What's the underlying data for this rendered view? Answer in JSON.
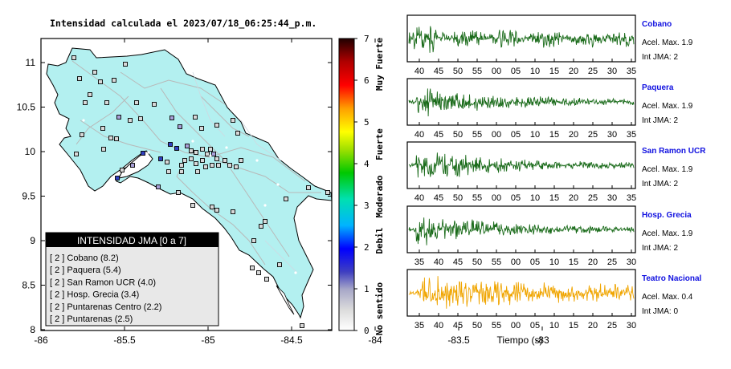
{
  "map": {
    "title": "Intensidad calculada el 2023/07/18_06:25:44_p.m.",
    "x_ticks": [
      "-86",
      "-85.5",
      "-85",
      "-84.5",
      "-84",
      "-83.5",
      "-83"
    ],
    "y_ticks": [
      "11",
      "10.5",
      "10",
      "9.5",
      "9",
      "8.5",
      "8"
    ]
  },
  "legend": {
    "title": "INTENSIDAD JMA [0 a 7]",
    "items": [
      "[ 2 ]  Cobano (8.2)",
      "[ 2 ]  Paquera (5.4)",
      "[ 2 ]  San Ramon UCR (4.0)",
      "[ 2 ]  Hosp. Grecia (3.4)",
      "[ 2 ]  Puntarenas Centro (2.2)",
      "[ 2 ]  Puntarenas (2.5)"
    ]
  },
  "colorbar": {
    "ticks": [
      "7",
      "6",
      "5",
      "4",
      "3",
      "2",
      "1",
      "0"
    ],
    "labels": [
      "Muy Fuerte",
      "Fuerte",
      "Moderado",
      "Debil",
      "No sentido"
    ]
  },
  "traces": [
    {
      "station": "Cobano",
      "accel": "Acel. Max. 1.9",
      "int": "Int JMA: 2",
      "color": "#1a6b1a",
      "ticks": [
        "40",
        "45",
        "50",
        "55",
        "00",
        "05",
        "10",
        "15",
        "20",
        "25",
        "30",
        "35"
      ]
    },
    {
      "station": "Paquera",
      "accel": "Acel. Max. 1.9",
      "int": "Int JMA: 2",
      "color": "#1a6b1a",
      "ticks": [
        "40",
        "45",
        "50",
        "55",
        "00",
        "05",
        "10",
        "15",
        "20",
        "25",
        "30",
        "35"
      ]
    },
    {
      "station": "San Ramon UCR",
      "accel": "Acel. Max. 1.9",
      "int": "Int JMA: 2",
      "color": "#1a6b1a",
      "ticks": [
        "40",
        "45",
        "50",
        "55",
        "00",
        "05",
        "10",
        "15",
        "20",
        "25",
        "30",
        "35"
      ]
    },
    {
      "station": "Hosp. Grecia",
      "accel": "Acel. Max. 1.9",
      "int": "Int JMA: 2",
      "color": "#1a6b1a",
      "ticks": [
        "35",
        "40",
        "45",
        "50",
        "55",
        "00",
        "05",
        "10",
        "15",
        "20",
        "25",
        "30"
      ]
    },
    {
      "station": "Teatro Nacional",
      "accel": "Acel. Max. 0.4",
      "int": "Int JMA: 0",
      "color": "#f0a500",
      "ticks": [
        "35",
        "40",
        "45",
        "50",
        "55",
        "00",
        "05",
        "10",
        "15",
        "20",
        "25",
        "30"
      ]
    }
  ],
  "xlabel": "Tiempo (s)"
}
